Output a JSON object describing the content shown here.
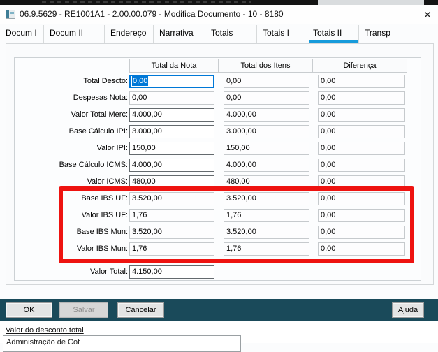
{
  "window": {
    "title": "06.9.5629 - RE1001A1 - 2.00.00.079 - Modifica Documento - 10 - 8180",
    "close_glyph": "✕"
  },
  "tabs": [
    {
      "label": "Docum I",
      "active": false
    },
    {
      "label": "Docum II",
      "active": false
    },
    {
      "label": "Endereço",
      "active": false
    },
    {
      "label": "Narrativa",
      "active": false
    },
    {
      "label": "Totais",
      "active": false
    },
    {
      "label": "Totais I",
      "active": false
    },
    {
      "label": "Totais II",
      "active": true
    },
    {
      "label": "Transp",
      "active": false
    }
  ],
  "table": {
    "headers": [
      "Total da Nota",
      "Total dos Itens",
      "Diferença"
    ],
    "rows": [
      {
        "label": "Total Descto:",
        "nota": "0,00",
        "itens": "0,00",
        "dif": "0,00",
        "state": "focused"
      },
      {
        "label": "Despesas Nota:",
        "nota": "0,00",
        "itens": "0,00",
        "dif": "0,00",
        "state": "readonly"
      },
      {
        "label": "Valor Total Merc:",
        "nota": "4.000,00",
        "itens": "4.000,00",
        "dif": "0,00",
        "state": "enabled"
      },
      {
        "label": "Base Cálculo IPI:",
        "nota": "3.000,00",
        "itens": "3.000,00",
        "dif": "0,00",
        "state": "enabled"
      },
      {
        "label": "Valor IPI:",
        "nota": "150,00",
        "itens": "150,00",
        "dif": "0,00",
        "state": "enabled"
      },
      {
        "label": "Base Cálculo ICMS:",
        "nota": "4.000,00",
        "itens": "4.000,00",
        "dif": "0,00",
        "state": "enabled"
      },
      {
        "label": "Valor ICMS:",
        "nota": "480,00",
        "itens": "480,00",
        "dif": "0,00",
        "state": "enabled"
      },
      {
        "label": "Base IBS UF:",
        "nota": "3.520,00",
        "itens": "3.520,00",
        "dif": "0,00",
        "state": "readonly",
        "highlighted": true
      },
      {
        "label": "Valor IBS UF:",
        "nota": "1,76",
        "itens": "1,76",
        "dif": "0,00",
        "state": "readonly",
        "highlighted": true
      },
      {
        "label": "Base IBS Mun:",
        "nota": "3.520,00",
        "itens": "3.520,00",
        "dif": "0,00",
        "state": "readonly",
        "highlighted": true
      },
      {
        "label": "Valor IBS Mun:",
        "nota": "1,76",
        "itens": "1,76",
        "dif": "0,00",
        "state": "readonly",
        "highlighted": true
      },
      {
        "label": "Valor Total:",
        "nota": "4.150,00",
        "state": "enabled",
        "single": true
      }
    ]
  },
  "footer": {
    "buttons": [
      {
        "label": "OK",
        "state": "enabled"
      },
      {
        "label": "Salvar",
        "state": "disabled"
      },
      {
        "label": "Cancelar",
        "state": "enabled"
      }
    ],
    "help_button": {
      "label": "Ajuda"
    }
  },
  "statusbar": {
    "tooltip": "Valor do desconto total",
    "partial_text": "Administração de Cot"
  },
  "colors": {
    "accent_blue": "#179bdb",
    "focus_blue": "#0078d7",
    "highlight_red": "#ee1310",
    "footer_teal": "#1a4a5a"
  }
}
